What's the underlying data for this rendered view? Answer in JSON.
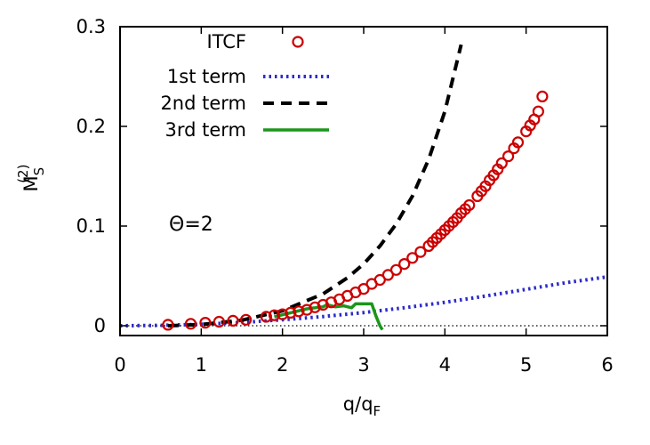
{
  "chart_data": {
    "type": "line",
    "title": "",
    "xlabel": "q/q",
    "xlabel_sub": "F",
    "ylabel": "M",
    "ylabel_sub": "S",
    "ylabel_sup": "(2)",
    "xlim": [
      0,
      6
    ],
    "ylim": [
      0,
      0.3
    ],
    "xticks": [
      0,
      1,
      2,
      3,
      4,
      5,
      6
    ],
    "xtick_labels": [
      "0",
      "1",
      "2",
      "3",
      "4",
      "5",
      "6"
    ],
    "yticks": [
      0,
      0.1,
      0.2,
      0.3
    ],
    "ytick_labels": [
      "0",
      "0.1",
      "0.2",
      "0.3"
    ],
    "annotation": "Θ=2",
    "legend_position": "top-left",
    "zero_line": true,
    "series": [
      {
        "name": "ITCF",
        "style": "circles",
        "color": "#cc0000",
        "x": [
          0.59,
          0.87,
          1.05,
          1.22,
          1.39,
          1.55,
          1.8,
          1.9,
          2.0,
          2.1,
          2.2,
          2.3,
          2.4,
          2.5,
          2.6,
          2.7,
          2.8,
          2.9,
          3.0,
          3.1,
          3.2,
          3.3,
          3.4,
          3.5,
          3.6,
          3.7,
          3.8,
          3.85,
          3.9,
          3.95,
          4.0,
          4.05,
          4.1,
          4.15,
          4.2,
          4.25,
          4.3,
          4.4,
          4.45,
          4.5,
          4.55,
          4.6,
          4.65,
          4.7,
          4.78,
          4.85,
          4.9,
          5.0,
          5.05,
          5.1,
          5.15,
          5.2
        ],
        "y": [
          0.001,
          0.002,
          0.003,
          0.004,
          0.005,
          0.006,
          0.009,
          0.0105,
          0.0115,
          0.013,
          0.0145,
          0.016,
          0.0185,
          0.021,
          0.0235,
          0.0265,
          0.03,
          0.0335,
          0.037,
          0.042,
          0.046,
          0.051,
          0.056,
          0.062,
          0.068,
          0.074,
          0.08,
          0.084,
          0.088,
          0.092,
          0.096,
          0.1,
          0.104,
          0.108,
          0.113,
          0.117,
          0.121,
          0.13,
          0.135,
          0.14,
          0.146,
          0.151,
          0.157,
          0.163,
          0.17,
          0.178,
          0.184,
          0.195,
          0.201,
          0.207,
          0.215,
          0.23
        ]
      },
      {
        "name": "1st term",
        "style": "dotted",
        "color": "#2b2bcc",
        "x": [
          0,
          0.5,
          1,
          1.5,
          2,
          2.5,
          3,
          3.5,
          4,
          4.5,
          5,
          5.5,
          6
        ],
        "y": [
          0.0,
          0.0004,
          0.0014,
          0.0033,
          0.006,
          0.0092,
          0.0132,
          0.018,
          0.0235,
          0.0298,
          0.0365,
          0.0433,
          0.049
        ]
      },
      {
        "name": "2nd term",
        "style": "dashed",
        "color": "#000000",
        "x": [
          0.59,
          1.0,
          1.5,
          2.0,
          2.5,
          2.8,
          3.0,
          3.2,
          3.4,
          3.6,
          3.8,
          4.0,
          4.2
        ],
        "y": [
          0.0,
          0.0012,
          0.0055,
          0.015,
          0.032,
          0.048,
          0.062,
          0.08,
          0.102,
          0.13,
          0.167,
          0.215,
          0.282
        ]
      },
      {
        "name": "3rd term",
        "style": "solid",
        "color": "#1a961a",
        "x": [
          1.9,
          2.1,
          2.3,
          2.5,
          2.55,
          2.65,
          2.75,
          2.85,
          2.9,
          3.1,
          3.15,
          3.2,
          3.23
        ],
        "y": [
          0.009,
          0.013,
          0.017,
          0.019,
          0.021,
          0.019,
          0.02,
          0.018,
          0.022,
          0.022,
          0.01,
          0.0,
          -0.004
        ]
      }
    ]
  }
}
